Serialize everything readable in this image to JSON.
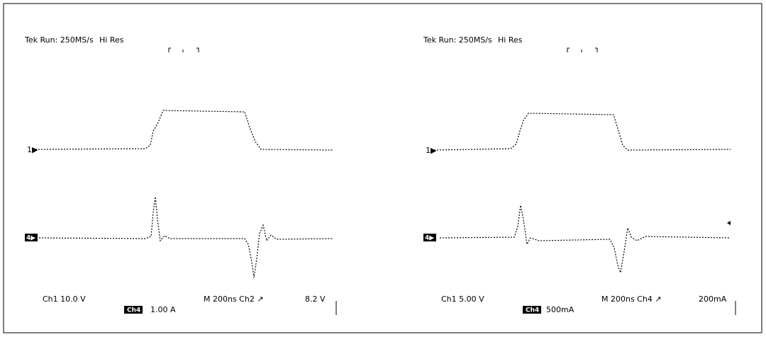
{
  "panels": [
    {
      "header": "Tek Run: 250MS/s",
      "mode": "Hi Res",
      "ch1_marker": "1▶",
      "ch4_marker": "4▶",
      "ch1_scale": "Ch1   10.0 V",
      "ch4_label": "Ch4",
      "ch4_scale": "1.00 A",
      "timebase": "M 200ns  Ch2 ↗",
      "trigger_level": "8.2 V"
    },
    {
      "header": "Tek Run: 250MS/s",
      "mode": "Hi Res",
      "ch1_marker": "1▶",
      "ch4_marker": "4▶",
      "ch1_scale": "Ch1   5.00 V",
      "ch4_label": "Ch4",
      "ch4_scale": "500mA",
      "timebase": "M 200ns  Ch4 ↗",
      "trigger_level": "200mA"
    }
  ]
}
